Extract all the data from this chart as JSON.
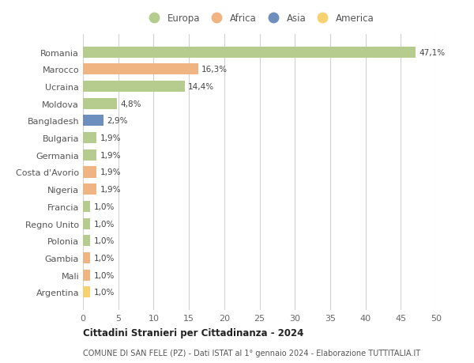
{
  "categories": [
    "Romania",
    "Marocco",
    "Ucraina",
    "Moldova",
    "Bangladesh",
    "Bulgaria",
    "Germania",
    "Costa d'Avorio",
    "Nigeria",
    "Francia",
    "Regno Unito",
    "Polonia",
    "Gambia",
    "Mali",
    "Argentina"
  ],
  "values": [
    47.1,
    16.3,
    14.4,
    4.8,
    2.9,
    1.9,
    1.9,
    1.9,
    1.9,
    1.0,
    1.0,
    1.0,
    1.0,
    1.0,
    1.0
  ],
  "labels": [
    "47,1%",
    "16,3%",
    "14,4%",
    "4,8%",
    "2,9%",
    "1,9%",
    "1,9%",
    "1,9%",
    "1,9%",
    "1,0%",
    "1,0%",
    "1,0%",
    "1,0%",
    "1,0%",
    "1,0%"
  ],
  "continents": [
    "Europa",
    "Africa",
    "Europa",
    "Europa",
    "Asia",
    "Europa",
    "Europa",
    "Africa",
    "Africa",
    "Europa",
    "Europa",
    "Europa",
    "Africa",
    "Africa",
    "America"
  ],
  "colors": {
    "Europa": "#b5cc8e",
    "Africa": "#f0b482",
    "Asia": "#6e8fbe",
    "America": "#f5d170"
  },
  "legend_order": [
    "Europa",
    "Africa",
    "Asia",
    "America"
  ],
  "title_bold": "Cittadini Stranieri per Cittadinanza - 2024",
  "subtitle": "COMUNE DI SAN FELE (PZ) - Dati ISTAT al 1° gennaio 2024 - Elaborazione TUTTITALIA.IT",
  "xlim": [
    0,
    50
  ],
  "xticks": [
    0,
    5,
    10,
    15,
    20,
    25,
    30,
    35,
    40,
    45,
    50
  ],
  "background_color": "#ffffff",
  "grid_color": "#d0d0d0"
}
